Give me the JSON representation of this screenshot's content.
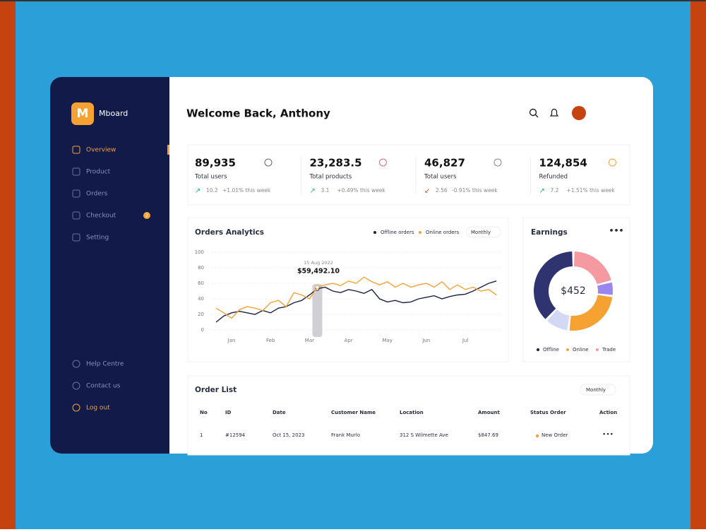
{
  "brand": "Mboard",
  "menu": [
    {
      "label": "Overview"
    },
    {
      "label": "Product"
    },
    {
      "label": "Orders"
    },
    {
      "label": "Checkout",
      "badge": "2"
    },
    {
      "label": "Setting"
    }
  ],
  "bottom_menu": [
    "Help Centre",
    "Contact us",
    "Log out"
  ],
  "header": {
    "title": "Welcome Back, Anthony"
  },
  "stats": [
    {
      "value": "89,935",
      "label": "Total users",
      "delta": "10.2",
      "change": "+1.01% this week"
    },
    {
      "value": "23,283.5",
      "label": "Total products",
      "delta": "3.1",
      "change": "+0.49% this week"
    },
    {
      "value": "46,827",
      "label": "Total users",
      "delta": "2.56",
      "change": "-0.91% this week"
    },
    {
      "value": "124,854",
      "label": "Refunded",
      "delta": "7.2",
      "change": "+1.51% this week"
    }
  ],
  "orders_analytics": {
    "type": "line",
    "title": "Orders Analytics",
    "period": "Monthly",
    "categories": [
      null,
      null,
      "Jan",
      null,
      null,
      null,
      null,
      "Feb",
      null,
      null,
      null,
      null,
      "Mar",
      null,
      null,
      null,
      null,
      "Apr",
      null,
      null,
      null,
      null,
      "May",
      null,
      null,
      null,
      null,
      "Jun",
      null,
      null,
      null,
      null,
      "Jul",
      null,
      null,
      null,
      null
    ],
    "series": [
      {
        "name": "Offline orders",
        "color": "#1b1f45",
        "values": [
          10,
          18,
          22,
          24,
          22,
          20,
          25,
          22,
          28,
          30,
          35,
          38,
          45,
          53,
          55,
          50,
          48,
          52,
          50,
          47,
          52,
          40,
          36,
          38,
          35,
          36,
          40,
          42,
          44,
          40,
          43,
          45,
          46,
          50,
          55,
          60,
          63
        ]
      },
      {
        "name": "Online orders",
        "color": "#f5a233",
        "values": [
          28,
          22,
          15,
          26,
          30,
          28,
          25,
          35,
          38,
          30,
          48,
          45,
          40,
          55,
          58,
          60,
          57,
          63,
          60,
          68,
          62,
          58,
          62,
          55,
          60,
          55,
          58,
          60,
          55,
          62,
          52,
          58,
          52,
          55,
          50,
          52,
          45
        ]
      }
    ],
    "ylim": [
      0,
      100
    ],
    "yticks": [
      0,
      20,
      40,
      60,
      80,
      100
    ],
    "grid": true,
    "tooltip": {
      "date": "15 Aug 2022",
      "value": "$59,492.10"
    }
  },
  "earnings": {
    "type": "pie",
    "title": "Earnings",
    "center_label": "$452",
    "segments": [
      {
        "value": 21,
        "color": "#f59aa0"
      },
      {
        "value": 6,
        "color": "#9b86f0"
      },
      {
        "value": 25,
        "color": "#f5a233"
      },
      {
        "value": 10,
        "color": "#d3d8f5"
      },
      {
        "value": 38,
        "color": "#2f3470"
      }
    ],
    "legend": [
      {
        "name": "Offline",
        "color": "#1b1f45"
      },
      {
        "name": "Online",
        "color": "#f5a233"
      },
      {
        "name": "Trade",
        "color": "#f59aa0"
      }
    ]
  },
  "order_list": {
    "title": "Order List",
    "period": "Monthly",
    "columns": [
      "No",
      "ID",
      "Date",
      "Customer Name",
      "Location",
      "Amount",
      "Status Order",
      "Action"
    ],
    "rows": [
      [
        "1",
        "#12594",
        "Oct 15, 2023",
        "Frank Murlo",
        "312 S Wilmette Ave",
        "$847.69",
        "New Order"
      ]
    ]
  }
}
